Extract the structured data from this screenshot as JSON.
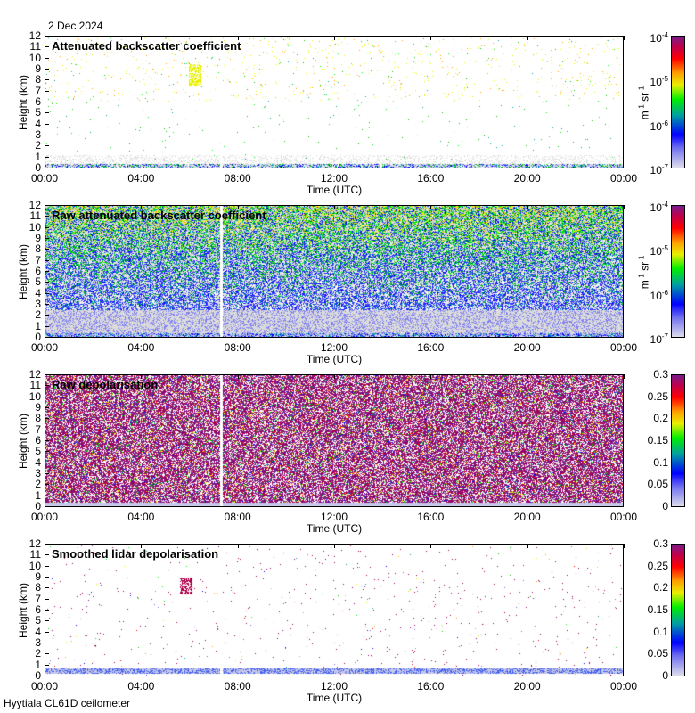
{
  "date": "2 Dec 2024",
  "footer": "Hyytiala CL61D ceilometer",
  "chart_data": [
    {
      "type": "heatmap",
      "title": "Attenuated backscatter coefficient",
      "xlabel": "Time (UTC)",
      "ylabel": "Height (km)",
      "xticks": [
        "00:00",
        "04:00",
        "08:00",
        "12:00",
        "16:00",
        "20:00",
        "00:00"
      ],
      "yticks": [
        "0",
        "1",
        "2",
        "3",
        "4",
        "5",
        "6",
        "7",
        "8",
        "9",
        "10",
        "11",
        "12"
      ],
      "ylim": [
        0,
        12
      ],
      "xlim_hours": [
        0,
        24
      ],
      "colorbar": {
        "scale": "log",
        "ticks": [
          {
            "b": "10",
            "e": "-7"
          },
          {
            "b": "10",
            "e": "-6"
          },
          {
            "b": "10",
            "e": "-5"
          },
          {
            "b": "10",
            "e": "-4"
          }
        ],
        "unit_a": "m",
        "unit_ae": "-1",
        "unit_b": " sr",
        "unit_be": "-1",
        "range": [
          1e-07,
          0.0001
        ]
      }
    },
    {
      "type": "heatmap",
      "title": "Raw attenuated backscatter coefficient",
      "xlabel": "Time (UTC)",
      "ylabel": "Height (km)",
      "xticks": [
        "00:00",
        "04:00",
        "08:00",
        "12:00",
        "16:00",
        "20:00",
        "00:00"
      ],
      "yticks": [
        "0",
        "1",
        "2",
        "3",
        "4",
        "5",
        "6",
        "7",
        "8",
        "9",
        "10",
        "11",
        "12"
      ],
      "ylim": [
        0,
        12
      ],
      "xlim_hours": [
        0,
        24
      ],
      "colorbar": {
        "scale": "log",
        "ticks": [
          {
            "b": "10",
            "e": "-7"
          },
          {
            "b": "10",
            "e": "-6"
          },
          {
            "b": "10",
            "e": "-5"
          },
          {
            "b": "10",
            "e": "-4"
          }
        ],
        "unit_a": "m",
        "unit_ae": "-1",
        "unit_b": " sr",
        "unit_be": "-1",
        "range": [
          1e-07,
          0.0001
        ]
      }
    },
    {
      "type": "heatmap",
      "title": "Raw depolarisation",
      "xlabel": "Time (UTC)",
      "ylabel": "Height (km)",
      "xticks": [
        "00:00",
        "04:00",
        "08:00",
        "12:00",
        "16:00",
        "20:00",
        "00:00"
      ],
      "yticks": [
        "0",
        "1",
        "2",
        "3",
        "4",
        "5",
        "6",
        "7",
        "8",
        "9",
        "10",
        "11",
        "12"
      ],
      "ylim": [
        0,
        12
      ],
      "xlim_hours": [
        0,
        24
      ],
      "colorbar": {
        "scale": "linear",
        "ticks": [
          "0",
          "0.05",
          "0.1",
          "0.15",
          "0.2",
          "0.25",
          "0.3"
        ],
        "range": [
          0,
          0.3
        ]
      }
    },
    {
      "type": "heatmap",
      "title": "Smoothed lidar depolarisation",
      "xlabel": "Time (UTC)",
      "ylabel": "Height (km)",
      "xticks": [
        "00:00",
        "04:00",
        "08:00",
        "12:00",
        "16:00",
        "20:00",
        "00:00"
      ],
      "yticks": [
        "0",
        "1",
        "2",
        "3",
        "4",
        "5",
        "6",
        "7",
        "8",
        "9",
        "10",
        "11",
        "12"
      ],
      "ylim": [
        0,
        12
      ],
      "xlim_hours": [
        0,
        24
      ],
      "colorbar": {
        "scale": "linear",
        "ticks": [
          "0",
          "0.05",
          "0.1",
          "0.15",
          "0.2",
          "0.25",
          "0.3"
        ],
        "range": [
          0,
          0.3
        ]
      }
    }
  ]
}
